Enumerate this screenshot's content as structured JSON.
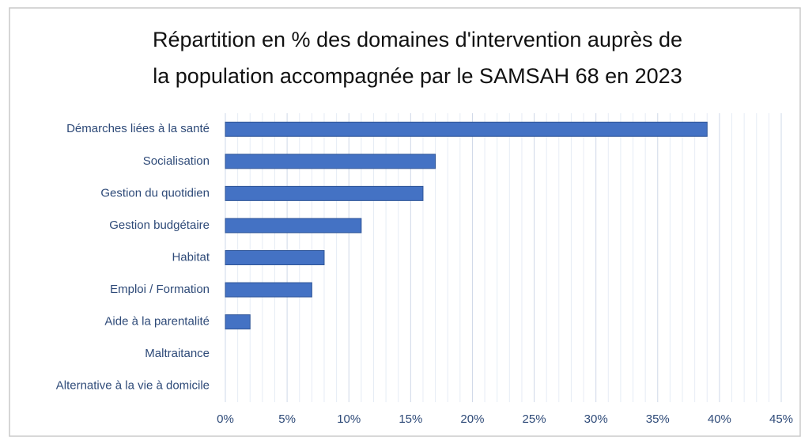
{
  "chart_data": {
    "type": "hbar",
    "title": [
      "Répartition en % des domaines d'intervention auprès de",
      "la population accompagnée par le SAMSAH 68 en 2023"
    ],
    "categories": [
      "Démarches liées à la santé",
      "Socialisation",
      "Gestion du quotidien",
      "Gestion budgétaire",
      "Habitat",
      "Emploi / Formation",
      "Aide à la parentalité",
      "Maltraitance",
      "Alternative à la vie à domicile"
    ],
    "values": [
      39,
      17,
      16,
      11,
      8,
      7,
      2,
      0,
      0
    ],
    "color": "#4472c4",
    "xlim": [
      0,
      45
    ],
    "xticks": [
      {
        "value": 0,
        "label": "0%"
      },
      {
        "value": 5,
        "label": "5%"
      },
      {
        "value": 10,
        "label": "10%"
      },
      {
        "value": 15,
        "label": "15%"
      },
      {
        "value": 20,
        "label": "20%"
      },
      {
        "value": 25,
        "label": "25%"
      },
      {
        "value": 30,
        "label": "30%"
      },
      {
        "value": 35,
        "label": "35%"
      },
      {
        "value": 40,
        "label": "40%"
      },
      {
        "value": 45,
        "label": "45%"
      }
    ],
    "grid": true
  }
}
